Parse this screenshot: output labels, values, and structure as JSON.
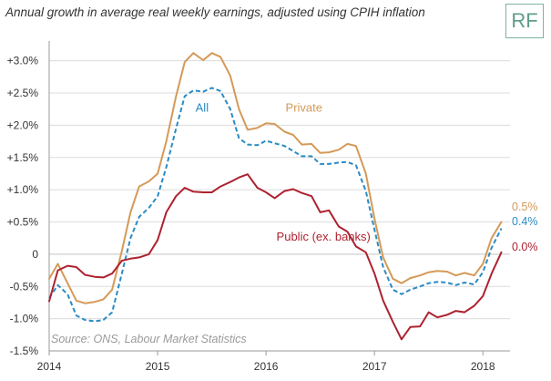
{
  "header": {
    "title": "Annual growth in average real weekly earnings, adjusted using CPIH inflation",
    "badge": "RF"
  },
  "colors": {
    "private": "#d49a58",
    "all": "#2a8bc4",
    "public": "#ad2230",
    "grid": "#dcdcdc",
    "zero_line": "#cfcfcf",
    "text": "#333333"
  },
  "source": "Source: ONS, Labour Market Statistics",
  "chart_data": {
    "type": "line",
    "title": "Annual growth in average real weekly earnings, adjusted using CPIH inflation",
    "xlabel": "",
    "ylabel": "",
    "xlim": [
      2014.0,
      2018.25
    ],
    "ylim": [
      -1.5,
      3.25
    ],
    "xticks": [
      2014,
      2015,
      2016,
      2017,
      2018
    ],
    "xtick_labels": [
      "2014",
      "2015",
      "2016",
      "2017",
      "2018"
    ],
    "yticks": [
      -1.5,
      -1.0,
      -0.5,
      0,
      0.5,
      1.0,
      1.5,
      2.0,
      2.5,
      3.0
    ],
    "ytick_labels": [
      "-1.5%",
      "-1.0%",
      "-0.5%",
      "0",
      "+0.5%",
      "+1.0%",
      "+1.5%",
      "+2.0%",
      "+2.5%",
      "+3.0%"
    ],
    "grid": true,
    "series": [
      {
        "key": "private",
        "name": "Private",
        "style": "solid",
        "end_label": "0.5%",
        "points": [
          [
            2014.0,
            -0.38
          ],
          [
            2014.08,
            -0.15
          ],
          [
            2014.17,
            -0.45
          ],
          [
            2014.25,
            -0.72
          ],
          [
            2014.33,
            -0.76
          ],
          [
            2014.42,
            -0.74
          ],
          [
            2014.5,
            -0.7
          ],
          [
            2014.58,
            -0.55
          ],
          [
            2014.67,
            0.05
          ],
          [
            2014.75,
            0.65
          ],
          [
            2014.83,
            1.05
          ],
          [
            2014.92,
            1.13
          ],
          [
            2015.0,
            1.25
          ],
          [
            2015.08,
            1.75
          ],
          [
            2015.17,
            2.45
          ],
          [
            2015.25,
            2.98
          ],
          [
            2015.33,
            3.12
          ],
          [
            2015.42,
            3.01
          ],
          [
            2015.5,
            3.12
          ],
          [
            2015.58,
            3.06
          ],
          [
            2015.67,
            2.77
          ],
          [
            2015.75,
            2.25
          ],
          [
            2015.83,
            1.93
          ],
          [
            2015.92,
            1.96
          ],
          [
            2016.0,
            2.03
          ],
          [
            2016.08,
            2.02
          ],
          [
            2016.17,
            1.9
          ],
          [
            2016.25,
            1.85
          ],
          [
            2016.33,
            1.7
          ],
          [
            2016.42,
            1.71
          ],
          [
            2016.5,
            1.57
          ],
          [
            2016.58,
            1.58
          ],
          [
            2016.67,
            1.62
          ],
          [
            2016.75,
            1.71
          ],
          [
            2016.83,
            1.68
          ],
          [
            2016.92,
            1.25
          ],
          [
            2017.0,
            0.55
          ],
          [
            2017.08,
            -0.05
          ],
          [
            2017.17,
            -0.38
          ],
          [
            2017.25,
            -0.45
          ],
          [
            2017.33,
            -0.37
          ],
          [
            2017.42,
            -0.33
          ],
          [
            2017.5,
            -0.28
          ],
          [
            2017.58,
            -0.26
          ],
          [
            2017.67,
            -0.27
          ],
          [
            2017.75,
            -0.33
          ],
          [
            2017.83,
            -0.29
          ],
          [
            2017.92,
            -0.33
          ],
          [
            2018.0,
            -0.15
          ],
          [
            2018.08,
            0.25
          ],
          [
            2018.17,
            0.5
          ]
        ]
      },
      {
        "key": "all",
        "name": "All",
        "style": "dashed",
        "end_label": "0.4%",
        "points": [
          [
            2014.0,
            -0.68
          ],
          [
            2014.08,
            -0.48
          ],
          [
            2014.17,
            -0.62
          ],
          [
            2014.25,
            -0.95
          ],
          [
            2014.33,
            -1.02
          ],
          [
            2014.42,
            -1.04
          ],
          [
            2014.5,
            -1.02
          ],
          [
            2014.58,
            -0.9
          ],
          [
            2014.67,
            -0.3
          ],
          [
            2014.75,
            0.25
          ],
          [
            2014.83,
            0.58
          ],
          [
            2014.92,
            0.72
          ],
          [
            2015.0,
            0.9
          ],
          [
            2015.08,
            1.35
          ],
          [
            2015.17,
            1.95
          ],
          [
            2015.25,
            2.45
          ],
          [
            2015.33,
            2.54
          ],
          [
            2015.42,
            2.52
          ],
          [
            2015.5,
            2.58
          ],
          [
            2015.58,
            2.53
          ],
          [
            2015.67,
            2.25
          ],
          [
            2015.75,
            1.8
          ],
          [
            2015.83,
            1.7
          ],
          [
            2015.92,
            1.69
          ],
          [
            2016.0,
            1.76
          ],
          [
            2016.08,
            1.72
          ],
          [
            2016.17,
            1.68
          ],
          [
            2016.25,
            1.6
          ],
          [
            2016.33,
            1.52
          ],
          [
            2016.42,
            1.52
          ],
          [
            2016.5,
            1.4
          ],
          [
            2016.58,
            1.4
          ],
          [
            2016.67,
            1.42
          ],
          [
            2016.75,
            1.43
          ],
          [
            2016.83,
            1.38
          ],
          [
            2016.92,
            0.98
          ],
          [
            2017.0,
            0.38
          ],
          [
            2017.08,
            -0.2
          ],
          [
            2017.17,
            -0.55
          ],
          [
            2017.25,
            -0.62
          ],
          [
            2017.33,
            -0.55
          ],
          [
            2017.42,
            -0.5
          ],
          [
            2017.5,
            -0.45
          ],
          [
            2017.58,
            -0.43
          ],
          [
            2017.67,
            -0.44
          ],
          [
            2017.75,
            -0.48
          ],
          [
            2017.83,
            -0.44
          ],
          [
            2017.92,
            -0.47
          ],
          [
            2018.0,
            -0.28
          ],
          [
            2018.08,
            0.1
          ],
          [
            2018.17,
            0.4
          ]
        ]
      },
      {
        "key": "public",
        "name": "Public (ex. banks)",
        "style": "solid",
        "end_label": "0.0%",
        "points": [
          [
            2014.0,
            -0.73
          ],
          [
            2014.08,
            -0.25
          ],
          [
            2014.17,
            -0.18
          ],
          [
            2014.25,
            -0.2
          ],
          [
            2014.33,
            -0.32
          ],
          [
            2014.42,
            -0.35
          ],
          [
            2014.5,
            -0.36
          ],
          [
            2014.58,
            -0.3
          ],
          [
            2014.67,
            -0.1
          ],
          [
            2014.75,
            -0.07
          ],
          [
            2014.83,
            -0.05
          ],
          [
            2014.92,
            0.0
          ],
          [
            2015.0,
            0.22
          ],
          [
            2015.08,
            0.65
          ],
          [
            2015.17,
            0.9
          ],
          [
            2015.25,
            1.03
          ],
          [
            2015.33,
            0.97
          ],
          [
            2015.42,
            0.96
          ],
          [
            2015.5,
            0.96
          ],
          [
            2015.58,
            1.05
          ],
          [
            2015.67,
            1.12
          ],
          [
            2015.75,
            1.19
          ],
          [
            2015.83,
            1.24
          ],
          [
            2015.92,
            1.03
          ],
          [
            2016.0,
            0.96
          ],
          [
            2016.08,
            0.87
          ],
          [
            2016.17,
            0.98
          ],
          [
            2016.25,
            1.01
          ],
          [
            2016.33,
            0.95
          ],
          [
            2016.42,
            0.9
          ],
          [
            2016.5,
            0.65
          ],
          [
            2016.58,
            0.68
          ],
          [
            2016.67,
            0.43
          ],
          [
            2016.75,
            0.35
          ],
          [
            2016.83,
            0.12
          ],
          [
            2016.92,
            0.03
          ],
          [
            2017.0,
            -0.3
          ],
          [
            2017.08,
            -0.72
          ],
          [
            2017.17,
            -1.05
          ],
          [
            2017.25,
            -1.32
          ],
          [
            2017.33,
            -1.13
          ],
          [
            2017.42,
            -1.12
          ],
          [
            2017.5,
            -0.9
          ],
          [
            2017.58,
            -0.98
          ],
          [
            2017.67,
            -0.94
          ],
          [
            2017.75,
            -0.88
          ],
          [
            2017.83,
            -0.9
          ],
          [
            2017.92,
            -0.8
          ],
          [
            2018.0,
            -0.65
          ],
          [
            2018.08,
            -0.3
          ],
          [
            2018.17,
            0.03
          ]
        ]
      }
    ],
    "annotations": [
      {
        "series": "all",
        "text": "All",
        "x": 2015.41,
        "y": 2.21,
        "anchor": "middle"
      },
      {
        "series": "private",
        "text": "Private",
        "x": 2016.35,
        "y": 2.21,
        "anchor": "middle"
      },
      {
        "series": "public",
        "text": "Public (ex. banks)",
        "x": 2016.53,
        "y": 0.21,
        "anchor": "middle"
      }
    ]
  }
}
